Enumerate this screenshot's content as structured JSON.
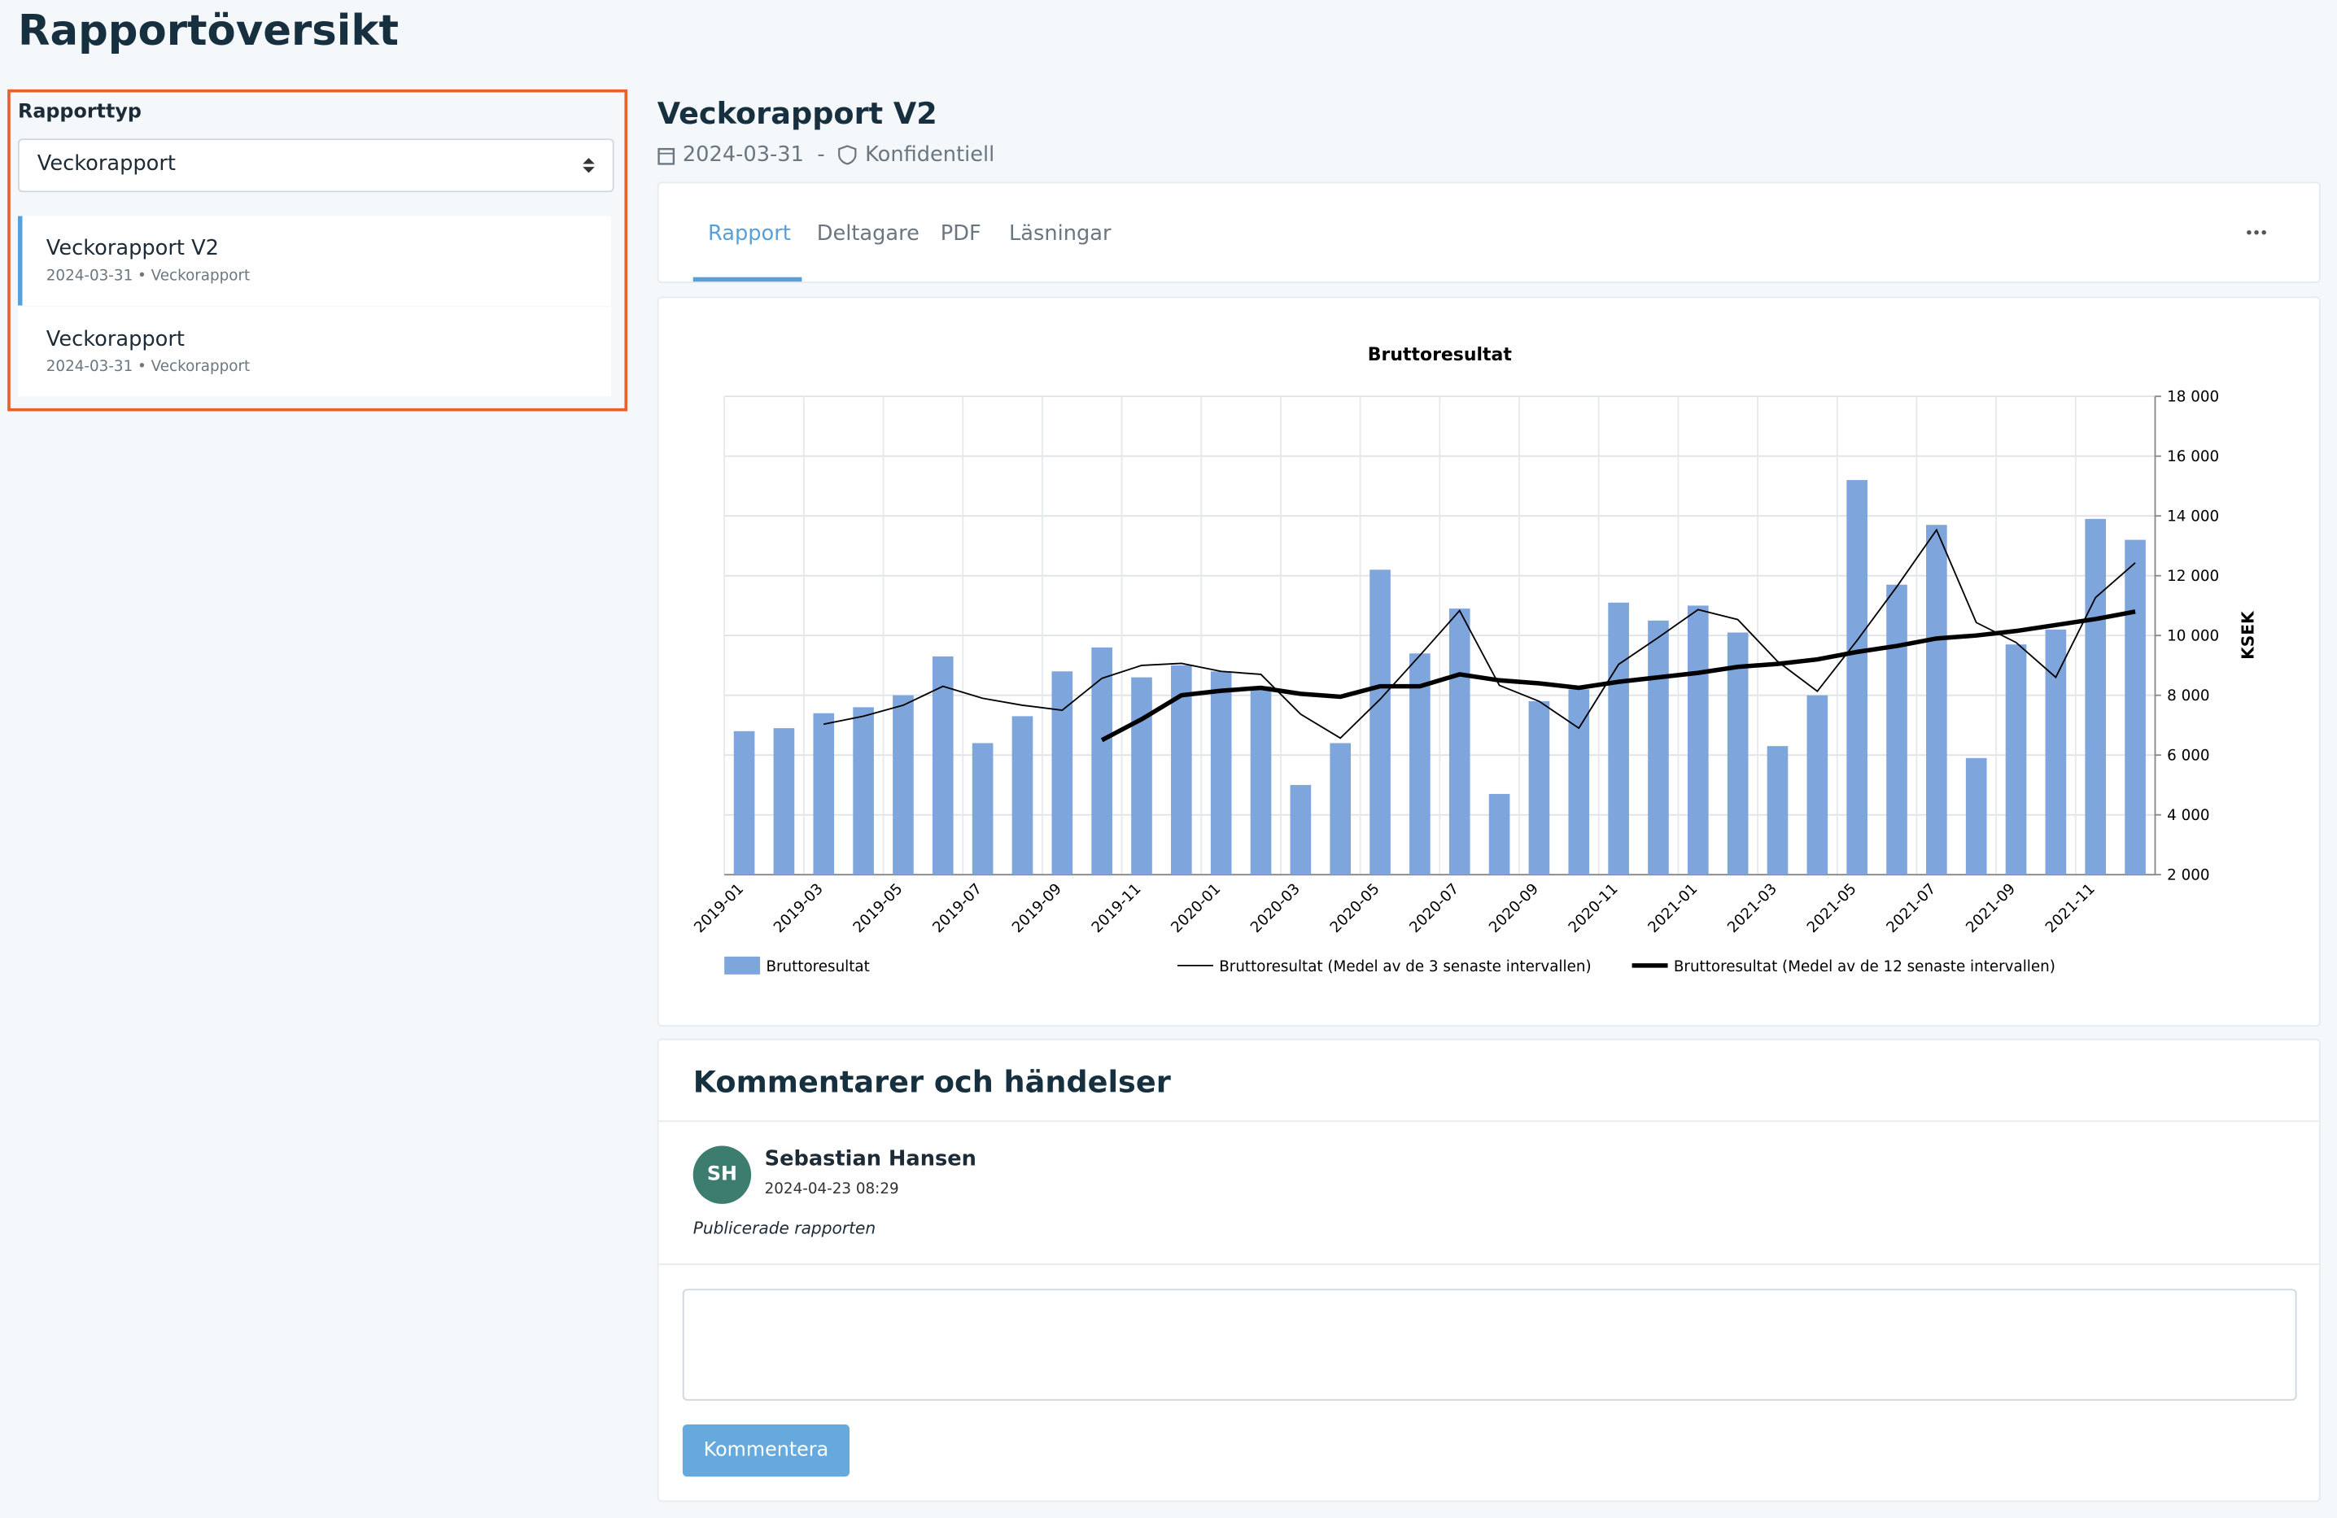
{
  "header": {
    "title": "Rapportöversikt"
  },
  "sidebar": {
    "label": "Rapporttyp",
    "select": "Veckorapport",
    "items": [
      {
        "title": "Veckorapport V2",
        "meta": "2024-03-31 • Veckorapport"
      },
      {
        "title": "Veckorapport",
        "meta": "2024-03-31 • Veckorapport"
      }
    ]
  },
  "report": {
    "title": "Veckorapport V2",
    "date": "2024-03-31",
    "separator": "-",
    "badge": "Konfidentiell",
    "tabs": [
      "Rapport",
      "Deltagare",
      "PDF",
      "Läsningar"
    ]
  },
  "chart_data": {
    "type": "bar",
    "title": "Bruttoresultat",
    "y_label": "KSEK",
    "categories": [
      "2019-01",
      null,
      "2019-03",
      null,
      "2019-05",
      null,
      "2019-07",
      null,
      "2019-09",
      null,
      "2019-11",
      null,
      "2020-01",
      null,
      "2020-03",
      null,
      "2020-05",
      null,
      "2020-07",
      null,
      "2020-09",
      null,
      "2020-11",
      null,
      "2021-01",
      null,
      "2021-03",
      null,
      "2021-05",
      null,
      "2021-07",
      null,
      "2021-09",
      null,
      "2021-11",
      null
    ],
    "series": [
      {
        "name": "Bruttoresultat",
        "type": "bar",
        "color": "#7fa6dc",
        "values": [
          6800,
          6900,
          7400,
          7600,
          8000,
          9300,
          6400,
          7300,
          8800,
          9600,
          8600,
          9000,
          8800,
          8300,
          5000,
          6400,
          12200,
          9400,
          10900,
          4700,
          7800,
          8200,
          11100,
          10500,
          11000,
          10100,
          6300,
          8000,
          15200,
          11700,
          13700,
          5900,
          9700,
          10200,
          13900,
          13200
        ]
      },
      {
        "name": "Bruttoresultat (Medel av de 3 senaste intervallen)",
        "type": "line",
        "color": "#000000",
        "width": 1,
        "values": [
          null,
          null,
          7033,
          7300,
          7667,
          8300,
          7900,
          7667,
          7500,
          8567,
          9000,
          9067,
          8800,
          8700,
          7367,
          6567,
          7867,
          9333,
          10833,
          8333,
          7800,
          6900,
          9033,
          9933,
          10867,
          10533,
          9133,
          8133,
          9833,
          11633,
          13533,
          10433,
          9767,
          8600,
          11267,
          12433
        ]
      },
      {
        "name": "Bruttoresultat (Medel av de 12 senaste intervallen)",
        "type": "line",
        "color": "#000000",
        "width": 3,
        "values": [
          null,
          null,
          null,
          null,
          null,
          null,
          null,
          null,
          null,
          6500,
          7200,
          8000,
          8150,
          8250,
          8050,
          7950,
          8300,
          8300,
          8700,
          8500,
          8400,
          8250,
          8450,
          8600,
          8750,
          8950,
          9050,
          9200,
          9450,
          9650,
          9900,
          10000,
          10150,
          10350,
          10550,
          10800
        ]
      }
    ],
    "ylim": [
      2000,
      18000
    ],
    "yticks": [
      {
        "value": 2000,
        "label": "2 000"
      },
      {
        "value": 4000,
        "label": "4 000"
      },
      {
        "value": 6000,
        "label": "6 000"
      },
      {
        "value": 8000,
        "label": "8 000"
      },
      {
        "value": 10000,
        "label": "10 000"
      },
      {
        "value": 12000,
        "label": "12 000"
      },
      {
        "value": 14000,
        "label": "14 000"
      },
      {
        "value": 16000,
        "label": "16 000"
      },
      {
        "value": 18000,
        "label": "18 000"
      }
    ],
    "grid": true,
    "y_axis_side": "right",
    "legend": "bottom"
  },
  "comments": {
    "title": "Kommentarer och händelser",
    "items": [
      {
        "initials": "SH",
        "author": "Sebastian Hansen",
        "time": "2024-04-23 08:29",
        "text": "Publicerade rapporten"
      }
    ],
    "button": "Kommentera"
  }
}
